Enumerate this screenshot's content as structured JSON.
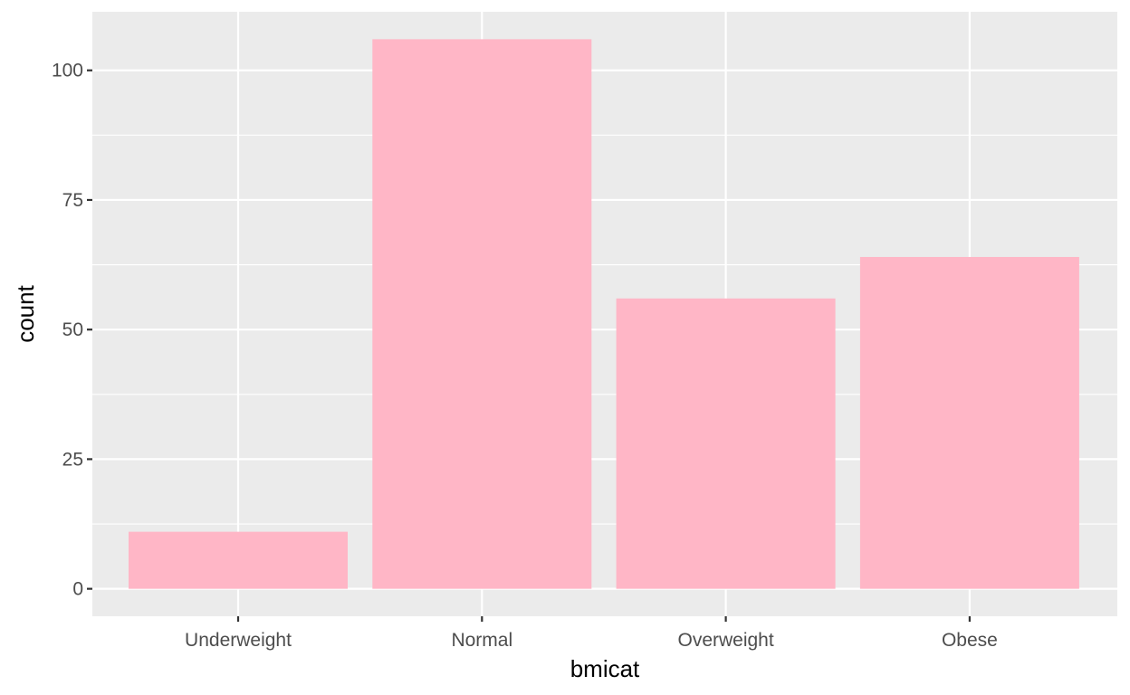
{
  "chart_data": {
    "type": "bar",
    "title": "",
    "xlabel": "bmicat",
    "ylabel": "count",
    "categories": [
      "Underweight",
      "Normal",
      "Overweight",
      "Obese"
    ],
    "values": [
      11,
      106,
      56,
      64
    ],
    "ylim": [
      -5.3,
      111.3
    ],
    "yticks": [
      0,
      25,
      50,
      75,
      100
    ],
    "ytick_labels": [
      "0",
      "25",
      "50",
      "75",
      "100"
    ],
    "grid": true,
    "legend": "none",
    "bar_color": "#ffb6c6",
    "panel_color": "#ebebeb"
  }
}
